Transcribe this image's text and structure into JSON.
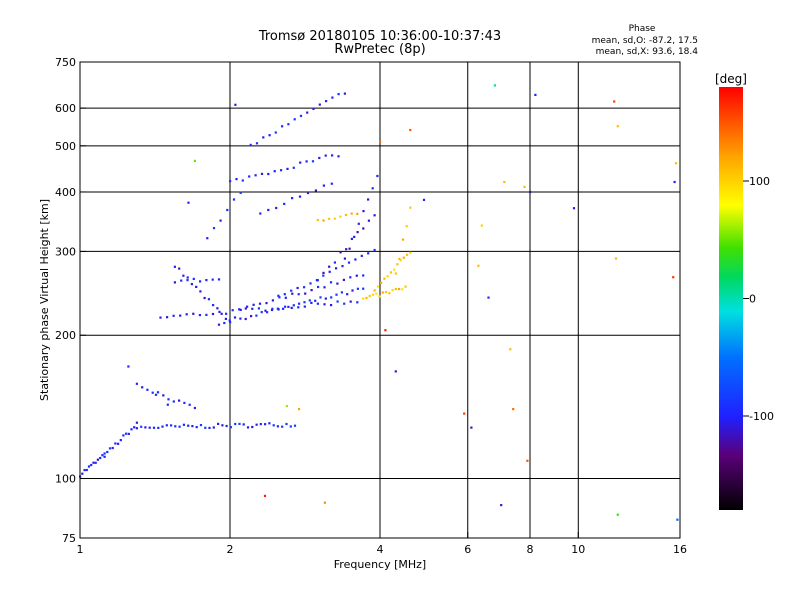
{
  "title": "Tromsø 20180105 10:36:00-10:37:43",
  "subtitle": "RwPretec (8p)",
  "stats": {
    "heading": "Phase",
    "line_o": "mean, sd,O: -87.2, 17.5",
    "line_x": "mean, sd,X:  93.6, 18.4"
  },
  "colorbar": {
    "unit": "[deg]",
    "ticks": [
      {
        "value": 100,
        "label": "100"
      },
      {
        "value": 0,
        "label": "0"
      },
      {
        "value": -100,
        "label": "-100"
      }
    ],
    "range": [
      -180,
      180
    ]
  },
  "chart_data": {
    "type": "scatter",
    "title": "Tromsø 20180105 10:36:00-10:37:43",
    "subtitle": "RwPretec (8p)",
    "xlabel": "Frequency [MHz]",
    "ylabel": "Stationary phase Virtual Height [km]",
    "x_scale": "log",
    "y_scale": "log",
    "xlim": [
      1,
      16
    ],
    "ylim": [
      75,
      750
    ],
    "x_ticks": [
      {
        "value": 1,
        "label": "1"
      },
      {
        "value": 2,
        "label": "2"
      },
      {
        "value": 4,
        "label": "4"
      },
      {
        "value": 6,
        "label": "6"
      },
      {
        "value": 8,
        "label": "8"
      },
      {
        "value": 10,
        "label": "10"
      },
      {
        "value": 16,
        "label": "16"
      }
    ],
    "y_ticks": [
      {
        "value": 75,
        "label": "75"
      },
      {
        "value": 100,
        "label": "100"
      },
      {
        "value": 200,
        "label": "200"
      },
      {
        "value": 300,
        "label": "300"
      },
      {
        "value": 400,
        "label": "400"
      },
      {
        "value": 500,
        "label": "500"
      },
      {
        "value": 600,
        "label": "600"
      },
      {
        "value": 750,
        "label": "750"
      }
    ],
    "x_gridlines": [
      2,
      4,
      6,
      8,
      10
    ],
    "y_gridlines": [
      100,
      200,
      300,
      400,
      500,
      600
    ],
    "color_by": "phase [deg]",
    "traces": [
      {
        "x0": 1.0,
        "x1": 1.12,
        "y0": 102,
        "y1": 112,
        "phase": -100,
        "step": 0.01
      },
      {
        "x0": 1.12,
        "x1": 1.3,
        "y0": 112,
        "y1": 130,
        "phase": -95,
        "step": 0.012
      },
      {
        "x0": 1.3,
        "x1": 2.7,
        "y0": 128,
        "y1": 130,
        "phase": -95,
        "step": 0.02
      },
      {
        "x0": 1.3,
        "x1": 1.7,
        "y0": 158,
        "y1": 140,
        "phase": -100,
        "step": 0.025
      },
      {
        "x0": 1.55,
        "x1": 2.0,
        "y0": 280,
        "y1": 212,
        "phase": -105,
        "step": 0.02
      },
      {
        "x0": 1.45,
        "x1": 3.6,
        "y0": 218,
        "y1": 236,
        "phase": -100,
        "step": 0.03
      },
      {
        "x0": 1.9,
        "x1": 3.7,
        "y0": 212,
        "y1": 250,
        "phase": -95,
        "step": 0.025
      },
      {
        "x0": 2.1,
        "x1": 3.7,
        "y0": 226,
        "y1": 268,
        "phase": -100,
        "step": 0.03
      },
      {
        "x0": 2.5,
        "x1": 3.9,
        "y0": 240,
        "y1": 300,
        "phase": -95,
        "step": 0.03
      },
      {
        "x0": 3.0,
        "x1": 3.9,
        "y0": 260,
        "y1": 360,
        "phase": -110,
        "step": 0.025
      },
      {
        "x0": 3.4,
        "x1": 3.95,
        "y0": 290,
        "y1": 430,
        "phase": -110,
        "step": 0.02
      },
      {
        "x0": 2.0,
        "x1": 3.3,
        "y0": 420,
        "y1": 480,
        "phase": -95,
        "step": 0.03
      },
      {
        "x0": 2.2,
        "x1": 3.4,
        "y0": 500,
        "y1": 650,
        "phase": -100,
        "step": 0.03
      },
      {
        "x0": 1.55,
        "x1": 1.9,
        "y0": 260,
        "y1": 262,
        "phase": -100,
        "step": 0.03
      },
      {
        "x0": 1.8,
        "x1": 2.1,
        "y0": 320,
        "y1": 400,
        "phase": -95,
        "step": 0.03
      },
      {
        "x0": 2.3,
        "x1": 3.2,
        "y0": 360,
        "y1": 420,
        "phase": -100,
        "step": 0.035
      },
      {
        "x0": 3.0,
        "x1": 3.6,
        "y0": 350,
        "y1": 360,
        "phase": 110,
        "step": 0.025
      },
      {
        "x0": 3.7,
        "x1": 4.5,
        "y0": 238,
        "y1": 252,
        "phase": 105,
        "step": 0.015
      },
      {
        "x0": 3.9,
        "x1": 4.6,
        "y0": 248,
        "y1": 300,
        "phase": 105,
        "step": 0.015
      },
      {
        "x0": 4.3,
        "x1": 4.6,
        "y0": 270,
        "y1": 370,
        "phase": 108,
        "step": 0.015
      }
    ],
    "noise": [
      {
        "x": 1.25,
        "y": 172,
        "phase": -100
      },
      {
        "x": 1.42,
        "y": 150,
        "phase": -95
      },
      {
        "x": 1.5,
        "y": 143,
        "phase": -95
      },
      {
        "x": 1.65,
        "y": 380,
        "phase": -100
      },
      {
        "x": 1.7,
        "y": 465,
        "phase": 50
      },
      {
        "x": 2.05,
        "y": 610,
        "phase": -110
      },
      {
        "x": 2.35,
        "y": 92,
        "phase": 170
      },
      {
        "x": 2.6,
        "y": 142,
        "phase": 60
      },
      {
        "x": 2.75,
        "y": 140,
        "phase": 120
      },
      {
        "x": 3.1,
        "y": 89,
        "phase": 130
      },
      {
        "x": 4.0,
        "y": 510,
        "phase": 140
      },
      {
        "x": 4.1,
        "y": 205,
        "phase": 170
      },
      {
        "x": 4.3,
        "y": 168,
        "phase": -110
      },
      {
        "x": 4.6,
        "y": 540,
        "phase": 150
      },
      {
        "x": 4.9,
        "y": 385,
        "phase": -100
      },
      {
        "x": 5.9,
        "y": 137,
        "phase": 160
      },
      {
        "x": 6.1,
        "y": 128,
        "phase": -120
      },
      {
        "x": 6.3,
        "y": 280,
        "phase": 110
      },
      {
        "x": 6.4,
        "y": 340,
        "phase": 100
      },
      {
        "x": 6.6,
        "y": 240,
        "phase": -100
      },
      {
        "x": 6.8,
        "y": 670,
        "phase": 0
      },
      {
        "x": 7.0,
        "y": 88,
        "phase": -110
      },
      {
        "x": 7.1,
        "y": 420,
        "phase": 110
      },
      {
        "x": 7.3,
        "y": 187,
        "phase": 110
      },
      {
        "x": 7.4,
        "y": 140,
        "phase": 140
      },
      {
        "x": 7.8,
        "y": 410,
        "phase": 110
      },
      {
        "x": 7.9,
        "y": 109,
        "phase": 150
      },
      {
        "x": 8.0,
        "y": 400,
        "phase": -120
      },
      {
        "x": 8.2,
        "y": 640,
        "phase": -100
      },
      {
        "x": 9.8,
        "y": 370,
        "phase": -105
      },
      {
        "x": 11.8,
        "y": 620,
        "phase": 160
      },
      {
        "x": 11.9,
        "y": 290,
        "phase": 110
      },
      {
        "x": 12.0,
        "y": 550,
        "phase": 110
      },
      {
        "x": 12.0,
        "y": 84,
        "phase": 40
      },
      {
        "x": 15.5,
        "y": 265,
        "phase": 160
      },
      {
        "x": 15.6,
        "y": 420,
        "phase": -100
      },
      {
        "x": 15.7,
        "y": 460,
        "phase": 110
      },
      {
        "x": 15.8,
        "y": 82,
        "phase": -60
      }
    ]
  }
}
